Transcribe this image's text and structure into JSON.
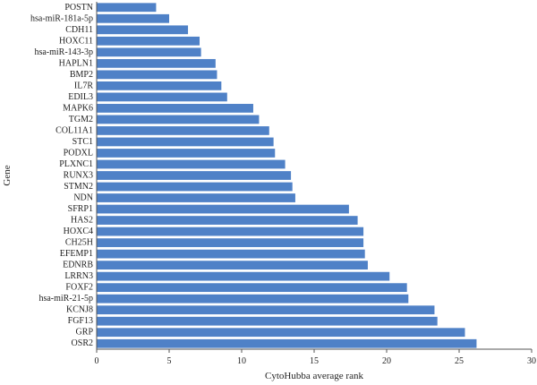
{
  "chart_data": {
    "type": "bar",
    "orientation": "horizontal",
    "xlabel": "CytoHubba average rank",
    "ylabel": "Gene",
    "xlim": [
      0,
      30
    ],
    "xticks": [
      0,
      5,
      10,
      15,
      20,
      25,
      30
    ],
    "grid": false,
    "bar_color": "#4f81c7",
    "categories": [
      "POSTN",
      "hsa-miR-181a-5p",
      "CDH11",
      "HOXC11",
      "hsa-miR-143-3p",
      "HAPLN1",
      "BMP2",
      "IL7R",
      "EDIL3",
      "MAPK6",
      "TGM2",
      "COL11A1",
      "STC1",
      "PODXL",
      "PLXNC1",
      "RUNX3",
      "STMN2",
      "NDN",
      "SFRP1",
      "HAS2",
      "HOXC4",
      "CH25H",
      "EFEMP1",
      "EDNRB",
      "LRRN3",
      "FOXF2",
      "hsa-miR-21-5p",
      "KCNJ8",
      "FGF13",
      "GRP",
      "OSR2"
    ],
    "values": [
      4.1,
      5.0,
      6.3,
      7.1,
      7.2,
      8.2,
      8.3,
      8.6,
      9.0,
      10.8,
      11.2,
      11.9,
      12.2,
      12.3,
      13.0,
      13.4,
      13.5,
      13.7,
      17.4,
      18.0,
      18.4,
      18.4,
      18.5,
      18.7,
      20.2,
      21.4,
      21.5,
      23.3,
      23.5,
      25.4,
      26.2
    ]
  }
}
